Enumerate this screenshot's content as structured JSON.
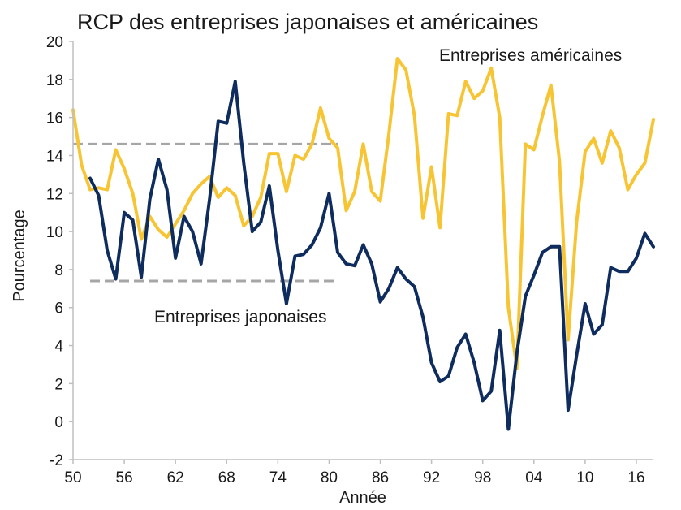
{
  "chart_data": {
    "type": "line",
    "title": "RCP des entreprises japonaises et américaines",
    "xlabel": "Année",
    "ylabel": "Pourcentage",
    "xlim": [
      1950,
      2018
    ],
    "ylim": [
      -2,
      20
    ],
    "yticks": [
      -2,
      0,
      2,
      4,
      6,
      8,
      10,
      12,
      14,
      16,
      18,
      20
    ],
    "xticks": [
      {
        "x": 1950,
        "label": "50"
      },
      {
        "x": 1956,
        "label": "56"
      },
      {
        "x": 1962,
        "label": "62"
      },
      {
        "x": 1968,
        "label": "68"
      },
      {
        "x": 1974,
        "label": "74"
      },
      {
        "x": 1980,
        "label": "80"
      },
      {
        "x": 1986,
        "label": "86"
      },
      {
        "x": 1992,
        "label": "92"
      },
      {
        "x": 1998,
        "label": "98"
      },
      {
        "x": 2004,
        "label": "04"
      },
      {
        "x": 2010,
        "label": "10"
      },
      {
        "x": 2016,
        "label": "16"
      }
    ],
    "grid": false,
    "series": [
      {
        "name": "Entreprises américaines",
        "color": "#f7c534",
        "points": [
          [
            1950,
            16.4
          ],
          [
            1951,
            13.5
          ],
          [
            1952,
            12.2
          ],
          [
            1953,
            12.3
          ],
          [
            1954,
            12.2
          ],
          [
            1955,
            14.3
          ],
          [
            1956,
            13.3
          ],
          [
            1957,
            12.0
          ],
          [
            1958,
            9.6
          ],
          [
            1959,
            10.8
          ],
          [
            1960,
            10.1
          ],
          [
            1961,
            9.7
          ],
          [
            1962,
            10.4
          ],
          [
            1963,
            11.1
          ],
          [
            1964,
            12.0
          ],
          [
            1965,
            12.5
          ],
          [
            1966,
            12.9
          ],
          [
            1967,
            11.8
          ],
          [
            1968,
            12.3
          ],
          [
            1969,
            11.9
          ],
          [
            1970,
            10.3
          ],
          [
            1971,
            10.8
          ],
          [
            1972,
            11.8
          ],
          [
            1973,
            14.1
          ],
          [
            1974,
            14.1
          ],
          [
            1975,
            12.1
          ],
          [
            1976,
            14.0
          ],
          [
            1977,
            13.8
          ],
          [
            1978,
            14.6
          ],
          [
            1979,
            16.5
          ],
          [
            1980,
            14.9
          ],
          [
            1981,
            14.4
          ],
          [
            1982,
            11.1
          ],
          [
            1983,
            12.1
          ],
          [
            1984,
            14.6
          ],
          [
            1985,
            12.1
          ],
          [
            1986,
            11.6
          ],
          [
            1987,
            15.1
          ],
          [
            1988,
            19.1
          ],
          [
            1989,
            18.5
          ],
          [
            1990,
            16.1
          ],
          [
            1991,
            10.7
          ],
          [
            1992,
            13.4
          ],
          [
            1993,
            10.2
          ],
          [
            1994,
            16.2
          ],
          [
            1995,
            16.1
          ],
          [
            1996,
            17.9
          ],
          [
            1997,
            17.0
          ],
          [
            1998,
            17.4
          ],
          [
            1999,
            18.6
          ],
          [
            2000,
            16.0
          ],
          [
            2001,
            6.0
          ],
          [
            2002,
            2.8
          ],
          [
            2003,
            14.6
          ],
          [
            2004,
            14.3
          ],
          [
            2005,
            16.1
          ],
          [
            2006,
            17.7
          ],
          [
            2007,
            13.7
          ],
          [
            2008,
            4.3
          ],
          [
            2009,
            10.5
          ],
          [
            2010,
            14.2
          ],
          [
            2011,
            14.9
          ],
          [
            2012,
            13.6
          ],
          [
            2013,
            15.3
          ],
          [
            2014,
            14.4
          ],
          [
            2015,
            12.2
          ],
          [
            2016,
            13.0
          ],
          [
            2017,
            13.6
          ],
          [
            2018,
            15.9
          ]
        ]
      },
      {
        "name": "Entreprises japonaises",
        "color": "#0f2c5f",
        "points": [
          [
            1952,
            12.8
          ],
          [
            1953,
            11.9
          ],
          [
            1954,
            9.0
          ],
          [
            1955,
            7.5
          ],
          [
            1956,
            11.0
          ],
          [
            1957,
            10.6
          ],
          [
            1958,
            7.6
          ],
          [
            1959,
            11.7
          ],
          [
            1960,
            13.8
          ],
          [
            1961,
            12.2
          ],
          [
            1962,
            8.6
          ],
          [
            1963,
            10.8
          ],
          [
            1964,
            10.0
          ],
          [
            1965,
            8.3
          ],
          [
            1966,
            11.7
          ],
          [
            1967,
            15.8
          ],
          [
            1968,
            15.7
          ],
          [
            1969,
            17.9
          ],
          [
            1970,
            13.6
          ],
          [
            1971,
            10.0
          ],
          [
            1972,
            10.5
          ],
          [
            1973,
            12.4
          ],
          [
            1974,
            9.0
          ],
          [
            1975,
            6.2
          ],
          [
            1976,
            8.7
          ],
          [
            1977,
            8.8
          ],
          [
            1978,
            9.3
          ],
          [
            1979,
            10.2
          ],
          [
            1980,
            12.0
          ],
          [
            1981,
            8.9
          ],
          [
            1982,
            8.3
          ],
          [
            1983,
            8.2
          ],
          [
            1984,
            9.3
          ],
          [
            1985,
            8.3
          ],
          [
            1986,
            6.3
          ],
          [
            1987,
            7.0
          ],
          [
            1988,
            8.1
          ],
          [
            1989,
            7.5
          ],
          [
            1990,
            7.1
          ],
          [
            1991,
            5.5
          ],
          [
            1992,
            3.1
          ],
          [
            1993,
            2.1
          ],
          [
            1994,
            2.4
          ],
          [
            1995,
            3.9
          ],
          [
            1996,
            4.6
          ],
          [
            1997,
            3.1
          ],
          [
            1998,
            1.1
          ],
          [
            1999,
            1.6
          ],
          [
            2000,
            4.8
          ],
          [
            2001,
            -0.4
          ],
          [
            2002,
            3.6
          ],
          [
            2003,
            6.6
          ],
          [
            2004,
            7.7
          ],
          [
            2005,
            8.9
          ],
          [
            2006,
            9.2
          ],
          [
            2007,
            9.2
          ],
          [
            2008,
            0.6
          ],
          [
            2009,
            3.5
          ],
          [
            2010,
            6.2
          ],
          [
            2011,
            4.6
          ],
          [
            2012,
            5.1
          ],
          [
            2013,
            8.1
          ],
          [
            2014,
            7.9
          ],
          [
            2015,
            7.9
          ],
          [
            2016,
            8.6
          ],
          [
            2017,
            9.9
          ],
          [
            2018,
            9.2
          ]
        ]
      }
    ],
    "reference_lines": [
      {
        "name": "us-average",
        "y": 14.6,
        "x_from": 1950,
        "x_to": 1981,
        "color": "#a6a6a6"
      },
      {
        "name": "japan-average",
        "y": 7.4,
        "x_from": 1952,
        "x_to": 1981,
        "color": "#a6a6a6"
      }
    ],
    "annotations": [
      {
        "text": "Entreprises américaines",
        "near": "top-right"
      },
      {
        "text": "Entreprises japonaises",
        "near": "middle-left"
      }
    ]
  }
}
